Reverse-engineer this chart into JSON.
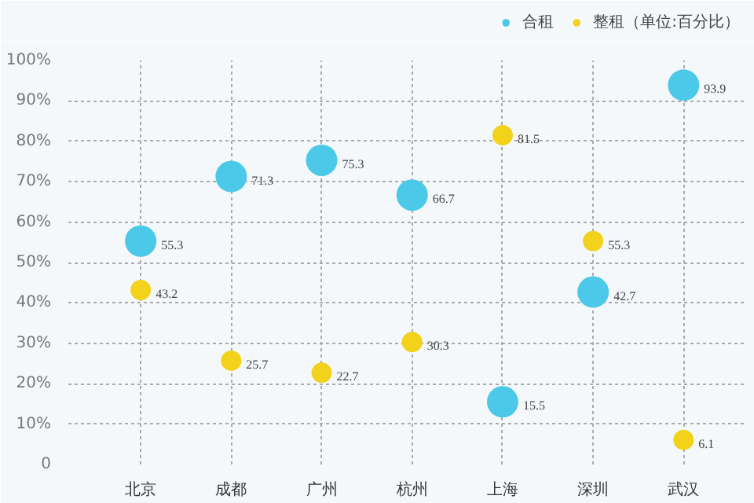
{
  "chart_data": {
    "type": "scatter",
    "categories": [
      "北京",
      "成都",
      "广州",
      "杭州",
      "上海",
      "深圳",
      "武汉"
    ],
    "series": [
      {
        "name": "合租",
        "color": "#4cc9e8",
        "values": [
          55.3,
          71.3,
          75.3,
          66.7,
          15.5,
          42.7,
          93.9
        ]
      },
      {
        "name": "整租（单位:百分比）",
        "color": "#f2d21b",
        "values": [
          43.2,
          25.7,
          22.7,
          30.3,
          81.5,
          55.3,
          6.1
        ]
      }
    ],
    "ylim": [
      0,
      100
    ],
    "yticks": [
      0,
      {
        "value": 10,
        "label": "10%"
      },
      {
        "value": 20,
        "label": "20%"
      },
      {
        "value": 30,
        "label": "30%"
      },
      {
        "value": 40,
        "label": "40%"
      },
      {
        "value": 50,
        "label": "50%"
      },
      {
        "value": 60,
        "label": "60%"
      },
      {
        "value": 70,
        "label": "70%"
      },
      {
        "value": 80,
        "label": "80%"
      },
      {
        "value": 90,
        "label": "90%"
      },
      {
        "value": 100,
        "label": "100%"
      }
    ],
    "grid": true,
    "legend": "top right",
    "marker": "circle",
    "data_labels": true
  }
}
